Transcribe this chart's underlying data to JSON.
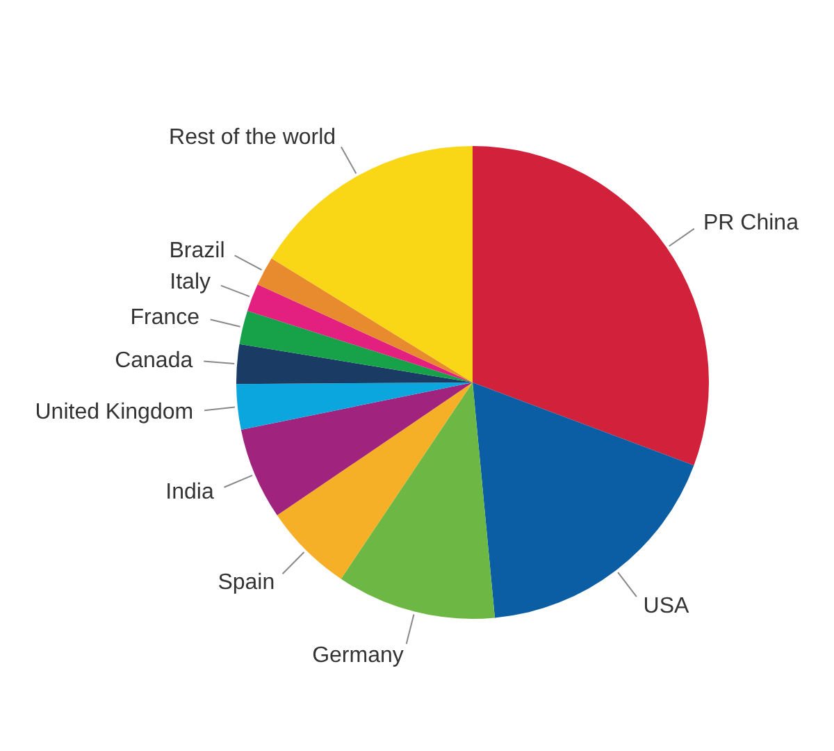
{
  "chart_data": {
    "type": "pie",
    "categories": [
      "PR China",
      "USA",
      "Germany",
      "Spain",
      "India",
      "United Kingdom",
      "Canada",
      "France",
      "Italy",
      "Brazil",
      "Rest of the world"
    ],
    "values": [
      30.7,
      17.8,
      10.9,
      6.1,
      6.3,
      3.1,
      2.7,
      2.3,
      1.9,
      2.0,
      16.2
    ],
    "colors": [
      "#d2213a",
      "#0b5ea3",
      "#6db844",
      "#f5b027",
      "#a0247e",
      "#0ca6df",
      "#1a3b63",
      "#17a24a",
      "#e3207f",
      "#e88b2e",
      "#f9d616"
    ]
  }
}
